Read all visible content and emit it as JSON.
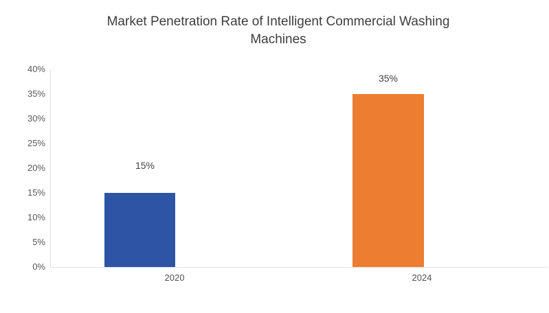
{
  "title": {
    "line1": "Market Penetration Rate of Intelligent Commercial Washing",
    "line2": "Machines"
  },
  "chart_data": {
    "type": "bar",
    "title": "Market Penetration Rate of Intelligent Commercial Washing Machines",
    "categories": [
      "2020",
      "2024"
    ],
    "values": [
      15,
      35
    ],
    "data_labels": [
      "15%",
      "35%"
    ],
    "colors": [
      "#2e55a5",
      "#ed7d31"
    ],
    "xlabel": "",
    "ylabel": "",
    "ylim": [
      0,
      40
    ],
    "ytick_step": 5,
    "yticks": [
      "0%",
      "5%",
      "10%",
      "15%",
      "20%",
      "25%",
      "30%",
      "35%",
      "40%"
    ],
    "grid": false,
    "legend": false,
    "unit": "percent"
  }
}
